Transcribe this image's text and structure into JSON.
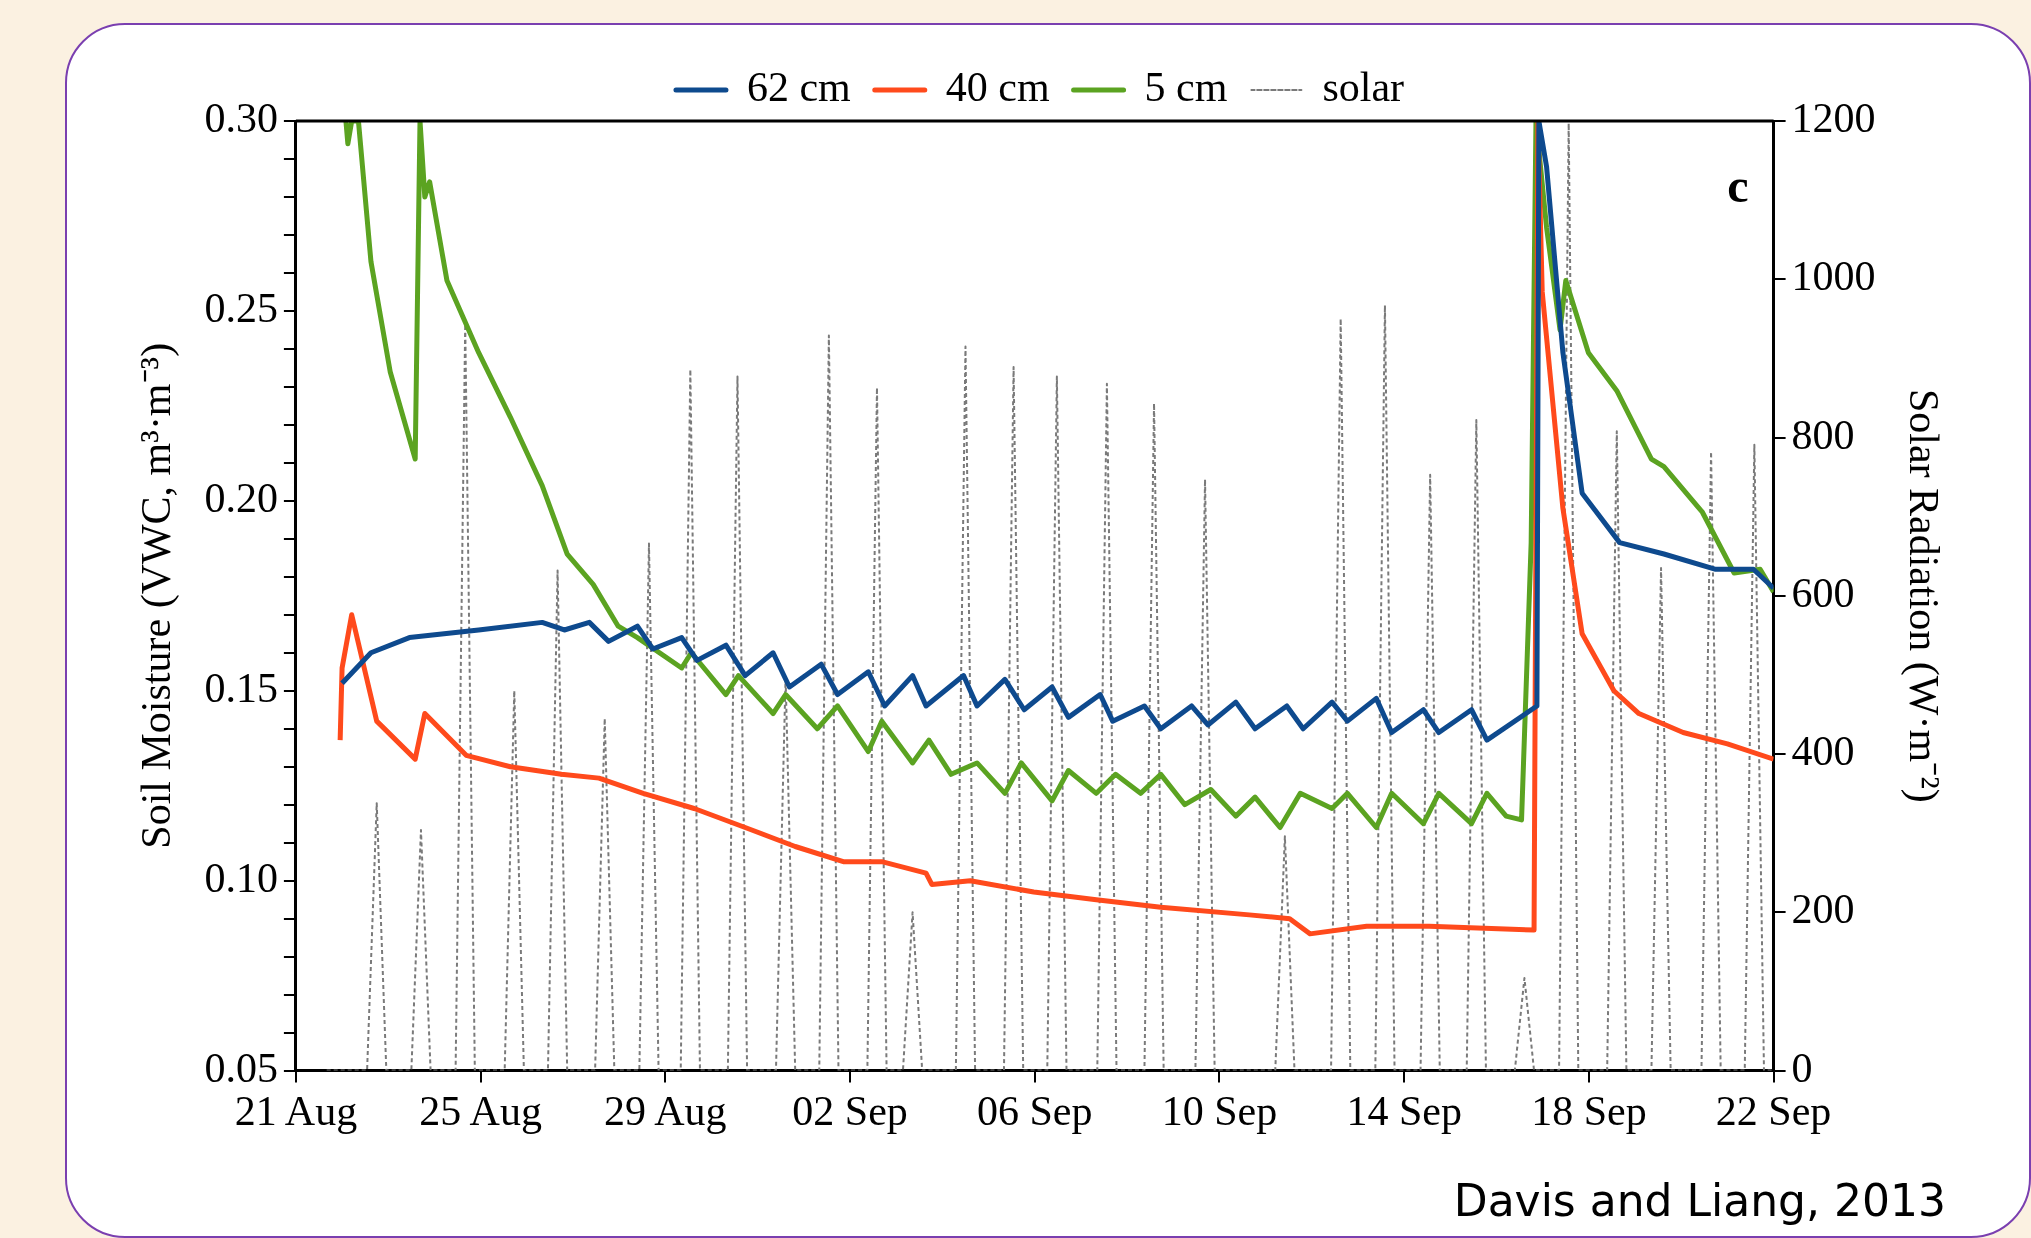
{
  "chart_data": {
    "type": "line",
    "xlabel": null,
    "ylabel": "Soil Moisture (VWC, m³·m⁻³)",
    "y2label": "Solar Radiation (W·m⁻²)",
    "annotations": [
      "c",
      "Davis and Liang, 2013"
    ],
    "xlim": [
      "--08-21",
      "--09-22"
    ],
    "xticks": [
      {
        "value": "--08-21",
        "label": "21 Aug"
      },
      {
        "value": "--08-25",
        "label": "25 Aug"
      },
      {
        "value": "--08-29",
        "label": "29 Aug"
      },
      {
        "value": "--09-02",
        "label": "02 Sep"
      },
      {
        "value": "--09-06",
        "label": "06 Sep"
      },
      {
        "value": "--09-10",
        "label": "10 Sep"
      },
      {
        "value": "--09-14",
        "label": "14 Sep"
      },
      {
        "value": "--09-18",
        "label": "18 Sep"
      },
      {
        "value": "--09-22",
        "label": "22 Sep"
      }
    ],
    "ylim": [
      0.05,
      0.3
    ],
    "yticks": [
      {
        "value": 0.05,
        "label": "0.05"
      },
      {
        "value": 0.06,
        "label": null
      },
      {
        "value": 0.07,
        "label": null
      },
      {
        "value": 0.08,
        "label": null
      },
      {
        "value": 0.09,
        "label": null
      },
      {
        "value": 0.1,
        "label": "0.10"
      },
      {
        "value": 0.11,
        "label": null
      },
      {
        "value": 0.12,
        "label": null
      },
      {
        "value": 0.13,
        "label": null
      },
      {
        "value": 0.14,
        "label": null
      },
      {
        "value": 0.15,
        "label": "0.15"
      },
      {
        "value": 0.16,
        "label": null
      },
      {
        "value": 0.17,
        "label": null
      },
      {
        "value": 0.18,
        "label": null
      },
      {
        "value": 0.19,
        "label": null
      },
      {
        "value": 0.2,
        "label": "0.20"
      },
      {
        "value": 0.21,
        "label": null
      },
      {
        "value": 0.22,
        "label": null
      },
      {
        "value": 0.23,
        "label": null
      },
      {
        "value": 0.24,
        "label": null
      },
      {
        "value": 0.25,
        "label": "0.25"
      },
      {
        "value": 0.26,
        "label": null
      },
      {
        "value": 0.27,
        "label": null
      },
      {
        "value": 0.28,
        "label": null
      },
      {
        "value": 0.29,
        "label": null
      },
      {
        "value": 0.3,
        "label": "0.30"
      }
    ],
    "y2lim": [
      0,
      1200
    ],
    "y2ticks": [
      0,
      200,
      400,
      600,
      800,
      1000,
      1200
    ],
    "grid": false,
    "legend": "top",
    "marker": "none",
    "series": [
      {
        "name": "62 cm",
        "color": "#0e4a8e",
        "line_style": "solid",
        "x": [
          "--08-22T00:00",
          "--08-22T15:00",
          "--08-23T11:00",
          "--08-24T23:00",
          "--08-26T08:00",
          "--08-26T19:30",
          "--08-27T08:30",
          "--08-27T18:30",
          "--08-28T09:30",
          "--08-28T17:30",
          "--08-29T08:30",
          "--08-29T16:30",
          "--08-30T07:30",
          "--08-30T17:30",
          "--08-31T08:00",
          "--08-31T16:30",
          "--09-01T09:00",
          "--09-01T17:30",
          "--09-02T09:30",
          "--09-02T18:00",
          "--09-03T08:30",
          "--09-03T15:30",
          "--09-04T11:00",
          "--09-04T18:00",
          "--09-05T08:30",
          "--09-05T18:30",
          "--09-06T09:00",
          "--09-06T17:30",
          "--09-07T10:00",
          "--09-07T16:30",
          "--09-08T09:00",
          "--09-08T17:30",
          "--09-09T09:30",
          "--09-09T18:00",
          "--09-10T08:30",
          "--09-10T18:30",
          "--09-11T11:00",
          "--09-11T19:30",
          "--09-12T10:30",
          "--09-12T18:30",
          "--09-13T09:30",
          "--09-13T17:30",
          "--09-14T10:00",
          "--09-14T18:00",
          "--09-15T11:00",
          "--09-15T19:00",
          "--09-16T21:00",
          "--09-16T22:00",
          "--09-17T02:00",
          "--09-17T10:30",
          "--09-17T20:30",
          "--09-18T16:00",
          "--09-19T15:00",
          "--09-20T17:30",
          "--09-21T13:30",
          "--09-22T00:00"
        ],
        "values": [
          0.152,
          0.16,
          0.164,
          0.166,
          0.168,
          0.166,
          0.168,
          0.163,
          0.167,
          0.161,
          0.164,
          0.158,
          0.162,
          0.154,
          0.16,
          0.151,
          0.157,
          0.149,
          0.155,
          0.146,
          0.154,
          0.146,
          0.154,
          0.146,
          0.153,
          0.145,
          0.151,
          0.143,
          0.149,
          0.142,
          0.146,
          0.14,
          0.146,
          0.141,
          0.147,
          0.14,
          0.146,
          0.14,
          0.147,
          0.142,
          0.148,
          0.139,
          0.145,
          0.139,
          0.145,
          0.137,
          0.146,
          0.3,
          0.288,
          0.239,
          0.202,
          0.189,
          0.186,
          0.182,
          0.182,
          0.177
        ]
      },
      {
        "name": "40 cm",
        "color": "#ff4a1c",
        "line_style": "solid",
        "x": [
          "--08-21T23:00",
          "--08-22T00:00",
          "--08-22T05:00",
          "--08-22T18:00",
          "--08-23T14:00",
          "--08-23T19:00",
          "--08-24T16:30",
          "--08-25T15:30",
          "--08-26T18:00",
          "--08-27T13:30",
          "--08-28T12:30",
          "--08-29T15:00",
          "--08-30T17:30",
          "--08-31T19:30",
          "--09-01T20:30",
          "--09-02T16:30",
          "--09-03T15:30",
          "--09-03T18:30",
          "--09-04T14:30",
          "--09-05T23:30",
          "--09-07T08:00",
          "--09-08T17:30",
          "--09-10T15:30",
          "--09-11T12:30",
          "--09-11T23:00",
          "--09-13T04:30",
          "--09-14T13:00",
          "--09-16T19:30",
          "--09-16T21:30",
          "--09-16T23:45",
          "--09-17T10:30",
          "--09-17T20:30",
          "--09-18T13:00",
          "--09-19T02:00",
          "--09-20T01:00",
          "--09-21T00:00",
          "--09-22T00:00"
        ],
        "values": [
          0.137,
          0.156,
          0.17,
          0.142,
          0.132,
          0.144,
          0.133,
          0.13,
          0.128,
          0.127,
          0.123,
          0.119,
          0.114,
          0.109,
          0.105,
          0.105,
          0.102,
          0.099,
          0.1,
          0.097,
          0.095,
          0.093,
          0.091,
          0.09,
          0.086,
          0.088,
          0.088,
          0.087,
          0.3,
          0.255,
          0.198,
          0.165,
          0.15,
          0.144,
          0.139,
          0.136,
          0.132
        ]
      },
      {
        "name": "5 cm",
        "color": "#5ba321",
        "line_style": "solid",
        "x": [
          "--08-22T02:00",
          "--08-22T03:00",
          "--08-22T05:00",
          "--08-22T08:30",
          "--08-22T15:00",
          "--08-23T01:00",
          "--08-23T14:00",
          "--08-23T16:30",
          "--08-23T19:00",
          "--08-23T21:30",
          "--08-24T06:30",
          "--08-24T23:00",
          "--08-25T15:30",
          "--08-26T08:00",
          "--08-26T21:00",
          "--08-27T10:30",
          "--08-27T23:30",
          "--08-28T09:30",
          "--08-29T08:30",
          "--08-29T13:30",
          "--08-30T07:30",
          "--08-30T14:00",
          "--08-31T08:00",
          "--08-31T14:30",
          "--09-01T07:00",
          "--09-01T17:30",
          "--09-02T09:30",
          "--09-02T16:30",
          "--09-03T08:30",
          "--09-03T17:00",
          "--09-04T04:30",
          "--09-04T18:00",
          "--09-05T08:30",
          "--09-05T17:00",
          "--09-06T09:00",
          "--09-06T17:30",
          "--09-07T08:00",
          "--09-07T18:00",
          "--09-08T07:00",
          "--09-08T17:30",
          "--09-09T06:00",
          "--09-09T19:30",
          "--09-10T08:30",
          "--09-10T18:30",
          "--09-11T07:30",
          "--09-11T18:00",
          "--09-12T10:30",
          "--09-12T18:30",
          "--09-13T09:30",
          "--09-13T17:30",
          "--09-14T10:00",
          "--09-14T18:00",
          "--09-15T11:00",
          "--09-15T19:00",
          "--09-16T05:00",
          "--09-16T13:00",
          "--09-16T18:00",
          "--09-16T20:30",
          "--09-17T02:00",
          "--09-17T09:00",
          "--09-17T12:00",
          "--09-17T23:45",
          "--09-18T14:30",
          "--09-19T08:30",
          "--09-19T15:00",
          "--09-20T11:00",
          "--09-21T03:30",
          "--09-21T17:00",
          "--09-22T00:00"
        ],
        "values": [
          0.3,
          0.294,
          0.3,
          0.3,
          0.263,
          0.234,
          0.211,
          0.3,
          0.28,
          0.284,
          0.258,
          0.239,
          0.222,
          0.204,
          0.186,
          0.178,
          0.167,
          0.164,
          0.156,
          0.16,
          0.149,
          0.154,
          0.144,
          0.149,
          0.14,
          0.146,
          0.134,
          0.142,
          0.131,
          0.137,
          0.128,
          0.131,
          0.123,
          0.131,
          0.121,
          0.129,
          0.123,
          0.128,
          0.123,
          0.128,
          0.12,
          0.124,
          0.117,
          0.122,
          0.114,
          0.123,
          0.119,
          0.123,
          0.114,
          0.123,
          0.115,
          0.123,
          0.115,
          0.123,
          0.117,
          0.116,
          0.189,
          0.3,
          0.272,
          0.245,
          0.258,
          0.239,
          0.229,
          0.211,
          0.209,
          0.197,
          0.181,
          0.182,
          0.176
        ]
      },
      {
        "name": "solar",
        "color": "#7a7a7a",
        "line_style": "dotted",
        "axis": "y2",
        "x": [
          "--08-21T16:00",
          "--08-22T13:00",
          "--08-22T18:00",
          "--08-22T23:00",
          "--08-23T12:00",
          "--08-23T17:00",
          "--08-23T22:00",
          "--08-24T11:00",
          "--08-24T16:00",
          "--08-24T21:00",
          "--08-25T12:30",
          "--08-25T17:30",
          "--08-25T22:30",
          "--08-26T11:00",
          "--08-26T16:00",
          "--08-26T21:00",
          "--08-27T11:30",
          "--08-27T16:30",
          "--08-27T21:30",
          "--08-28T10:30",
          "--08-28T15:30",
          "--08-28T20:30",
          "--08-29T08:00",
          "--08-29T13:00",
          "--08-29T18:00",
          "--08-30T08:30",
          "--08-30T13:30",
          "--08-30T18:30",
          "--08-31T09:30",
          "--08-31T14:30",
          "--08-31T19:30",
          "--09-01T08:00",
          "--09-01T13:00",
          "--09-01T18:00",
          "--09-02T09:00",
          "--09-02T14:00",
          "--09-02T19:00",
          "--09-03T03:30",
          "--09-03T08:30",
          "--09-03T13:30",
          "--09-04T07:00",
          "--09-04T12:00",
          "--09-04T17:00",
          "--09-05T08:00",
          "--09-05T13:00",
          "--09-05T18:00",
          "--09-06T06:30",
          "--09-06T11:30",
          "--09-06T16:30",
          "--09-07T08:30",
          "--09-07T13:30",
          "--09-07T18:30",
          "--09-08T09:00",
          "--09-08T14:00",
          "--09-08T19:00",
          "--09-09T11:30",
          "--09-09T16:30",
          "--09-09T21:30",
          "--09-11T05:00",
          "--09-11T10:00",
          "--09-11T15:00",
          "--09-12T10:00",
          "--09-12T15:00",
          "--09-12T20:00",
          "--09-13T09:00",
          "--09-13T14:00",
          "--09-13T19:00",
          "--09-14T08:30",
          "--09-14T13:30",
          "--09-14T18:30",
          "--09-15T08:30",
          "--09-15T13:30",
          "--09-15T18:30",
          "--09-16T09:30",
          "--09-16T14:30",
          "--09-16T19:30",
          "--09-17T08:30",
          "--09-17T13:30",
          "--09-17T18:30",
          "--09-18T09:30",
          "--09-18T14:30",
          "--09-18T19:30",
          "--09-19T08:30",
          "--09-19T13:30",
          "--09-19T18:30",
          "--09-20T10:30",
          "--09-20T15:30",
          "--09-20T20:30",
          "--09-21T09:00",
          "--09-21T14:00",
          "--09-21T19:00",
          "--09-22T00:00"
        ],
        "values": [
          0,
          0,
          338,
          0,
          0,
          304,
          0,
          0,
          943,
          0,
          0,
          480,
          0,
          0,
          632,
          0,
          0,
          445,
          0,
          0,
          666,
          0,
          0,
          886,
          0,
          0,
          877,
          0,
          0,
          497,
          0,
          0,
          929,
          0,
          0,
          863,
          0,
          0,
          200,
          0,
          0,
          915,
          0,
          0,
          889,
          0,
          0,
          877,
          0,
          0,
          868,
          0,
          0,
          843,
          0,
          0,
          747,
          0,
          0,
          296,
          0,
          0,
          950,
          0,
          0,
          967,
          0,
          0,
          753,
          0,
          0,
          822,
          0,
          0,
          117,
          0,
          0,
          1197,
          0,
          0,
          808,
          0,
          0,
          635,
          0,
          0,
          782,
          0,
          0,
          791,
          0,
          0
        ]
      }
    ]
  }
}
